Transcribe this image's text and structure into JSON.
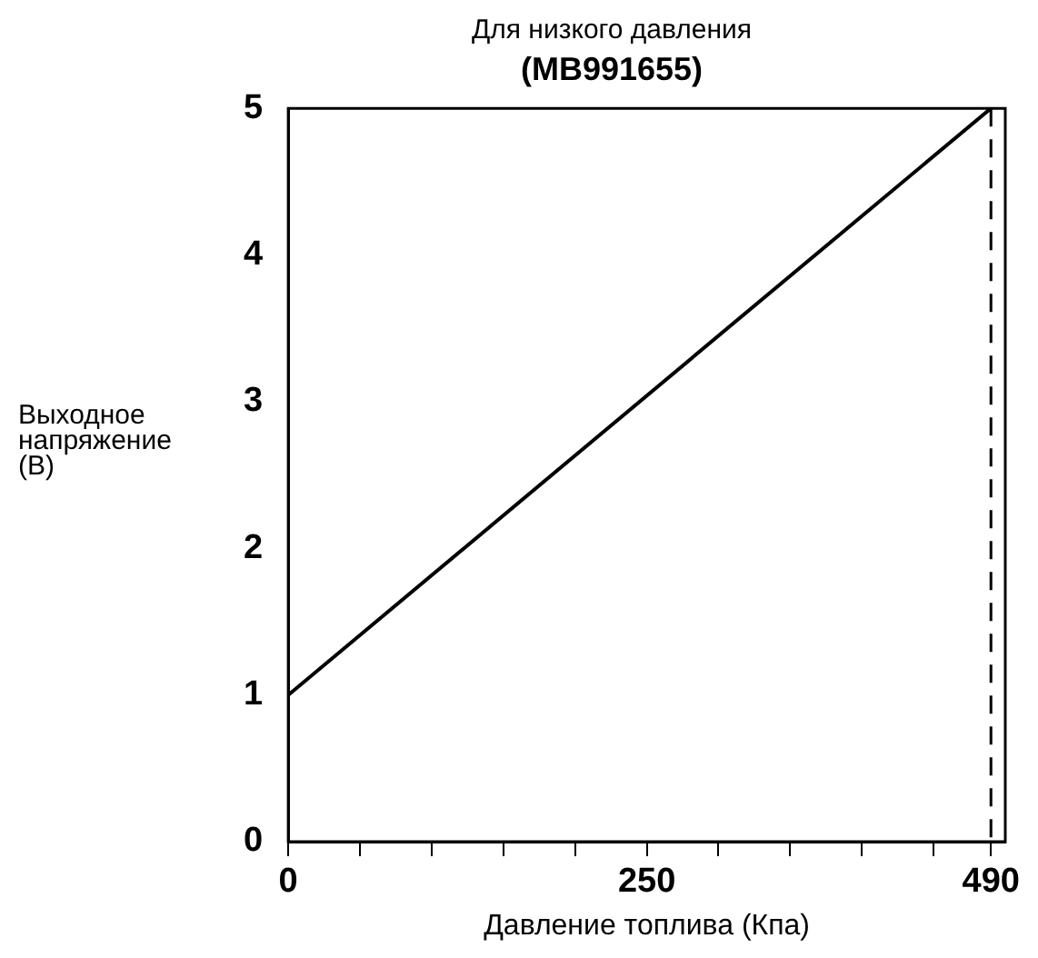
{
  "chart_data": {
    "type": "line",
    "title": "Для низкого давления",
    "subtitle": "(MB991655)",
    "xlabel": "Давление топлива (Кпа)",
    "ylabel": "Выходное напряжение (В)",
    "series": [
      {
        "color": "#000000",
        "x": [
          0,
          490
        ],
        "values": [
          1,
          5
        ]
      }
    ],
    "xlim": [
      0,
      500
    ],
    "xticks": [
      0,
      {
        "value": 50,
        "label": null
      },
      {
        "value": 100,
        "label": null
      },
      {
        "value": 150,
        "label": null
      },
      {
        "value": 200,
        "label": null
      },
      250,
      {
        "value": 300,
        "label": null
      },
      {
        "value": 350,
        "label": null
      },
      {
        "value": 400,
        "label": null
      },
      {
        "value": 450,
        "label": null
      },
      490
    ],
    "ylim": [
      0,
      5
    ],
    "yticks": [
      0,
      1,
      2,
      3,
      4,
      5
    ],
    "ref_lines": [
      {
        "axis": "x",
        "value": 490,
        "color": "#000000",
        "line_style": "dashed"
      }
    ],
    "grid": false,
    "legend": false,
    "marker": "none",
    "line_style": "solid"
  }
}
